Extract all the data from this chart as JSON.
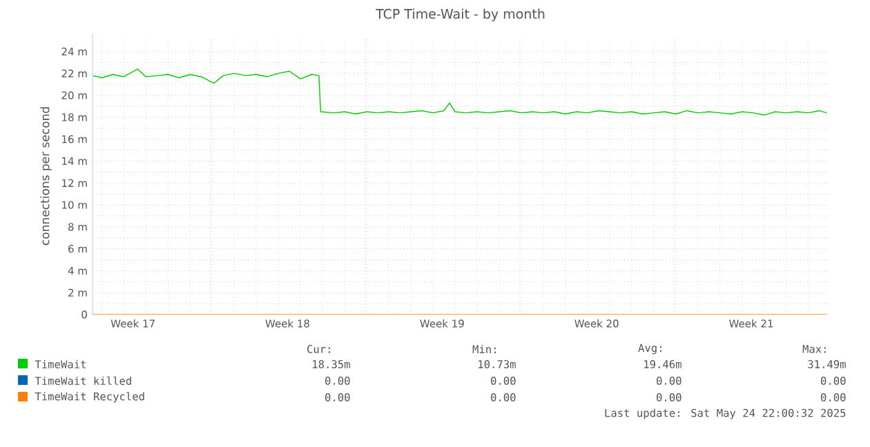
{
  "chart_data": {
    "type": "line",
    "title": "TCP Time-Wait - by month",
    "ylabel": "connections per second",
    "xlim": [
      "2025-04-21T14:00",
      "2025-05-24T22:00"
    ],
    "ylim": [
      0,
      25.3
    ],
    "xticks": [
      {
        "value": "2025-04-23T10:00",
        "label": "Week 17"
      },
      {
        "value": "2025-04-26T22:00",
        "label": null
      },
      {
        "value": "2025-04-30T10:00",
        "label": "Week 18"
      },
      {
        "value": "2025-05-03T22:00",
        "label": null
      },
      {
        "value": "2025-05-07T10:00",
        "label": "Week 19"
      },
      {
        "value": "2025-05-10T22:00",
        "label": null
      },
      {
        "value": "2025-05-14T10:00",
        "label": "Week 20"
      },
      {
        "value": "2025-05-17T22:00",
        "label": null
      },
      {
        "value": "2025-05-21T10:00",
        "label": "Week 21"
      }
    ],
    "yticks": [
      0,
      {
        "value": 2,
        "label": "2 m"
      },
      {
        "value": 4,
        "label": "4 m"
      },
      {
        "value": 6,
        "label": "6 m"
      },
      {
        "value": 8,
        "label": "8 m"
      },
      {
        "value": 10,
        "label": "10 m"
      },
      {
        "value": 12,
        "label": "12 m"
      },
      {
        "value": 14,
        "label": "14 m"
      },
      {
        "value": 16,
        "label": "16 m"
      },
      {
        "value": 18,
        "label": "18 m"
      },
      {
        "value": 20,
        "label": "20 m"
      },
      {
        "value": 22,
        "label": "22 m"
      },
      {
        "value": 24,
        "label": "24 m"
      }
    ],
    "grid": true,
    "legend": "bottom",
    "series": [
      {
        "name": "TimeWait",
        "color": "#00cc00",
        "x": [
          "2025-04-21T14:00",
          "2025-04-22T00:00",
          "2025-04-22T12:00",
          "2025-04-23T00:00",
          "2025-04-23T15:00",
          "2025-04-24T00:00",
          "2025-04-24T12:00",
          "2025-04-25T00:00",
          "2025-04-25T12:00",
          "2025-04-26T00:00",
          "2025-04-26T12:00",
          "2025-04-27T02:00",
          "2025-04-27T12:00",
          "2025-04-28T00:00",
          "2025-04-28T12:00",
          "2025-04-29T00:00",
          "2025-04-29T12:00",
          "2025-04-30T00:00",
          "2025-04-30T12:00",
          "2025-05-01T00:00",
          "2025-05-01T12:00",
          "2025-05-01T20:00",
          "2025-05-01T22:00",
          "2025-05-02T12:00",
          "2025-05-03T00:00",
          "2025-05-03T12:00",
          "2025-05-04T00:00",
          "2025-05-04T12:00",
          "2025-05-05T00:00",
          "2025-05-05T12:00",
          "2025-05-06T00:00",
          "2025-05-06T12:00",
          "2025-05-07T00:00",
          "2025-05-07T12:00",
          "2025-05-07T18:00",
          "2025-05-08T00:00",
          "2025-05-08T12:00",
          "2025-05-09T00:00",
          "2025-05-09T12:00",
          "2025-05-10T00:00",
          "2025-05-10T12:00",
          "2025-05-11T00:00",
          "2025-05-11T12:00",
          "2025-05-12T00:00",
          "2025-05-12T12:00",
          "2025-05-13T00:00",
          "2025-05-13T12:00",
          "2025-05-14T00:00",
          "2025-05-14T12:00",
          "2025-05-15T00:00",
          "2025-05-15T12:00",
          "2025-05-16T00:00",
          "2025-05-16T12:00",
          "2025-05-17T00:00",
          "2025-05-17T12:00",
          "2025-05-18T00:00",
          "2025-05-18T12:00",
          "2025-05-19T00:00",
          "2025-05-19T12:00",
          "2025-05-20T00:00",
          "2025-05-20T12:00",
          "2025-05-21T00:00",
          "2025-05-21T12:00",
          "2025-05-22T00:00",
          "2025-05-22T12:00",
          "2025-05-23T00:00",
          "2025-05-23T12:00",
          "2025-05-24T00:00",
          "2025-05-24T12:00",
          "2025-05-24T20:00"
        ],
        "values": [
          21.8,
          21.6,
          21.9,
          21.7,
          22.4,
          21.7,
          21.8,
          21.9,
          21.6,
          21.9,
          21.7,
          21.1,
          21.8,
          22.0,
          21.8,
          21.9,
          21.7,
          22.0,
          22.2,
          21.5,
          21.9,
          21.8,
          18.5,
          18.4,
          18.5,
          18.3,
          18.5,
          18.4,
          18.5,
          18.4,
          18.5,
          18.6,
          18.4,
          18.6,
          19.3,
          18.5,
          18.4,
          18.5,
          18.4,
          18.5,
          18.6,
          18.4,
          18.5,
          18.4,
          18.5,
          18.3,
          18.5,
          18.4,
          18.6,
          18.5,
          18.4,
          18.5,
          18.3,
          18.4,
          18.5,
          18.3,
          18.6,
          18.4,
          18.5,
          18.4,
          18.3,
          18.5,
          18.4,
          18.2,
          18.5,
          18.4,
          18.5,
          18.4,
          18.6,
          18.4
        ]
      },
      {
        "name": "TimeWait killed",
        "color": "#0066b3"
      },
      {
        "name": "TimeWait Recycled",
        "color": "#ff8000",
        "x": [
          "2025-04-21T14:00",
          "2025-05-24T20:00"
        ],
        "values": [
          0,
          0
        ]
      }
    ],
    "annotations": [
      "Cur:",
      "Min:",
      "Avg:",
      "Max:",
      "18.35m",
      "10.73m",
      "19.46m",
      "31.49m",
      "0.00",
      "0.00",
      "0.00",
      "0.00",
      "0.00",
      "0.00",
      "0.00",
      "0.00",
      "Last update: Sat May 24 22:00:32 2025"
    ]
  }
}
